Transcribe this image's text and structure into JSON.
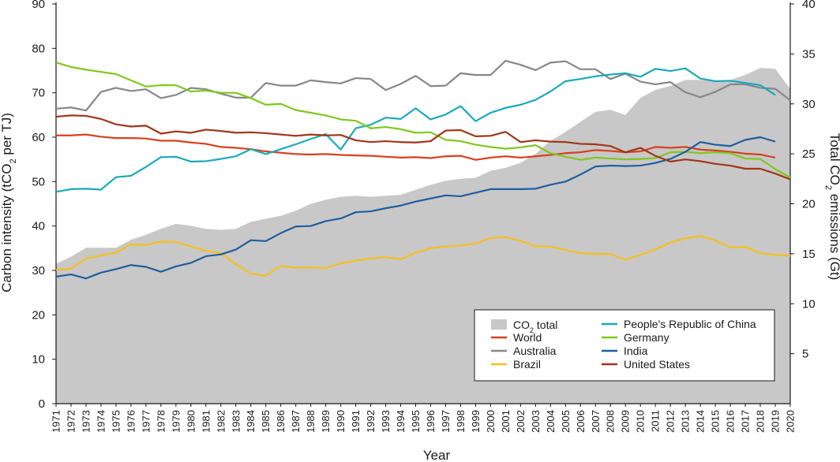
{
  "chart_data": {
    "type": "line",
    "title": "",
    "xlabel": "Year",
    "ylabel_left": {
      "main": "Carbon intensity (tCO",
      "sub": "2",
      "rest": " per TJ)"
    },
    "ylabel_right": {
      "main": "Total CO",
      "sub": "2",
      "rest": " emissions (Gt)"
    },
    "ylim_left": [
      0,
      90
    ],
    "ylim_right": [
      0,
      40
    ],
    "yticks_left": [
      0,
      10,
      20,
      30,
      40,
      50,
      60,
      70,
      80,
      90
    ],
    "yticks_right": [
      5,
      10,
      15,
      20,
      25,
      30,
      35,
      40
    ],
    "right_tick_top": "40",
    "x": [
      1971,
      1972,
      1973,
      1974,
      1975,
      1976,
      1977,
      1978,
      1979,
      1980,
      1981,
      1982,
      1983,
      1984,
      1985,
      1986,
      1987,
      1988,
      1989,
      1990,
      1991,
      1992,
      1993,
      1994,
      1995,
      1996,
      1997,
      1998,
      1999,
      2000,
      2001,
      2002,
      2003,
      2004,
      2005,
      2006,
      2007,
      2008,
      2009,
      2010,
      2011,
      2012,
      2013,
      2014,
      2015,
      2016,
      2017,
      2018,
      2019,
      2020
    ],
    "grid": false,
    "legend_position": "bottom-right",
    "area": {
      "name": "CO",
      "name_sub": "2",
      "name_rest": " total",
      "axis": "right",
      "color": "#c8c8c8",
      "values": [
        14.0,
        14.7,
        15.6,
        15.6,
        15.6,
        16.4,
        16.9,
        17.5,
        18.0,
        17.8,
        17.5,
        17.4,
        17.5,
        18.2,
        18.5,
        18.8,
        19.3,
        20.0,
        20.4,
        20.7,
        20.8,
        20.7,
        20.8,
        20.9,
        21.4,
        21.9,
        22.3,
        22.5,
        22.6,
        23.3,
        23.6,
        24.1,
        25.0,
        26.3,
        27.2,
        28.2,
        29.2,
        29.4,
        28.9,
        30.6,
        31.4,
        31.8,
        32.4,
        32.4,
        32.3,
        32.4,
        32.9,
        33.6,
        33.5,
        31.5
      ]
    },
    "series": [
      {
        "name": "World",
        "color": "#d6411e",
        "values": [
          60.4,
          60.4,
          60.6,
          60.1,
          59.8,
          59.8,
          59.7,
          59.2,
          59.2,
          58.8,
          58.5,
          57.8,
          57.6,
          57.3,
          56.8,
          56.5,
          56.2,
          56.1,
          56.2,
          56.0,
          55.9,
          55.8,
          55.6,
          55.4,
          55.5,
          55.3,
          55.7,
          55.8,
          54.9,
          55.4,
          55.7,
          55.4,
          55.7,
          56.0,
          56.4,
          56.6,
          57.1,
          56.9,
          56.6,
          56.8,
          57.8,
          57.6,
          57.8,
          57.2,
          57.0,
          56.7,
          56.3,
          56.1,
          55.4,
          null
        ]
      },
      {
        "name": "Australia",
        "color": "#878787",
        "values": [
          66.4,
          66.7,
          66.0,
          70.2,
          71.1,
          70.4,
          70.8,
          68.8,
          69.5,
          71.1,
          70.8,
          69.8,
          68.9,
          68.9,
          72.2,
          71.6,
          71.6,
          72.8,
          72.4,
          72.1,
          73.3,
          73.1,
          70.6,
          72.0,
          73.8,
          71.5,
          71.6,
          74.4,
          74.0,
          74.0,
          77.2,
          76.3,
          75.1,
          76.8,
          77.1,
          75.3,
          75.3,
          73.1,
          74.3,
          72.5,
          71.9,
          72.4,
          70.1,
          69.0,
          70.2,
          71.9,
          71.9,
          71.1,
          70.9,
          68.3
        ]
      },
      {
        "name": "Brazil",
        "color": "#f5bf1d",
        "values": [
          30.1,
          30.4,
          32.7,
          33.4,
          34.0,
          35.9,
          35.7,
          36.5,
          36.4,
          35.4,
          34.4,
          33.9,
          31.4,
          29.3,
          28.8,
          31.0,
          30.6,
          30.7,
          30.5,
          31.6,
          32.2,
          32.7,
          33.0,
          32.5,
          34.0,
          35.0,
          35.4,
          35.6,
          36.1,
          37.3,
          37.5,
          36.7,
          35.4,
          35.4,
          34.6,
          33.9,
          33.7,
          33.7,
          32.4,
          33.5,
          34.7,
          36.3,
          37.2,
          37.8,
          36.7,
          35.2,
          35.3,
          33.9,
          33.5,
          33.3
        ]
      },
      {
        "name": "People's Republic of China",
        "color": "#1aa9bd",
        "values": [
          47.7,
          48.3,
          48.4,
          48.2,
          51.0,
          51.3,
          53.3,
          55.5,
          55.6,
          54.5,
          54.6,
          55.1,
          55.7,
          57.3,
          56.2,
          57.3,
          58.4,
          59.6,
          60.7,
          57.2,
          62.0,
          62.8,
          64.4,
          64.1,
          66.5,
          64.0,
          65.1,
          67.0,
          63.6,
          65.5,
          66.6,
          67.3,
          68.4,
          70.3,
          72.6,
          73.1,
          73.7,
          74.1,
          74.4,
          73.6,
          75.4,
          74.9,
          75.5,
          73.2,
          72.6,
          72.7,
          72.2,
          71.7,
          69.5,
          null
        ]
      },
      {
        "name": "Germany",
        "color": "#7ec820",
        "values": [
          76.8,
          75.8,
          75.2,
          74.7,
          74.2,
          72.8,
          71.4,
          71.7,
          71.7,
          70.3,
          70.5,
          70.0,
          70.0,
          68.8,
          67.3,
          67.5,
          66.1,
          65.5,
          64.9,
          64.0,
          63.7,
          62.0,
          62.3,
          61.8,
          61.0,
          61.1,
          59.4,
          59.1,
          58.3,
          57.8,
          57.4,
          57.7,
          58.2,
          56.4,
          55.6,
          54.9,
          55.4,
          55.2,
          55.0,
          55.1,
          55.3,
          56.6,
          56.7,
          56.4,
          56.6,
          56.4,
          55.2,
          55.1,
          52.8,
          50.9
        ]
      },
      {
        "name": "India",
        "color": "#1f5e9e",
        "values": [
          28.6,
          29.1,
          28.2,
          29.5,
          30.3,
          31.2,
          30.8,
          29.7,
          30.9,
          31.7,
          33.2,
          33.6,
          34.7,
          36.8,
          36.6,
          38.4,
          39.9,
          40.0,
          41.1,
          41.7,
          43.1,
          43.3,
          44.0,
          44.6,
          45.5,
          46.2,
          46.9,
          46.7,
          47.5,
          48.3,
          48.3,
          48.3,
          48.4,
          49.3,
          50.0,
          51.6,
          53.4,
          53.6,
          53.5,
          53.6,
          54.2,
          55.1,
          56.7,
          58.9,
          58.3,
          58.0,
          59.4,
          60.0,
          59.0,
          null
        ]
      },
      {
        "name": "United States",
        "color": "#a0361a",
        "values": [
          64.6,
          64.9,
          64.8,
          64.1,
          62.9,
          62.4,
          62.6,
          60.8,
          61.3,
          61.0,
          61.7,
          61.4,
          61.0,
          61.1,
          60.9,
          60.6,
          60.3,
          60.6,
          60.4,
          60.5,
          59.3,
          58.9,
          59.1,
          58.9,
          58.8,
          59.1,
          61.5,
          61.6,
          60.2,
          60.3,
          61.2,
          58.9,
          59.3,
          59.0,
          58.9,
          58.5,
          58.4,
          58.0,
          56.6,
          57.6,
          55.8,
          54.5,
          55.0,
          54.6,
          54.0,
          53.6,
          52.9,
          52.9,
          51.8,
          50.5
        ]
      }
    ]
  }
}
